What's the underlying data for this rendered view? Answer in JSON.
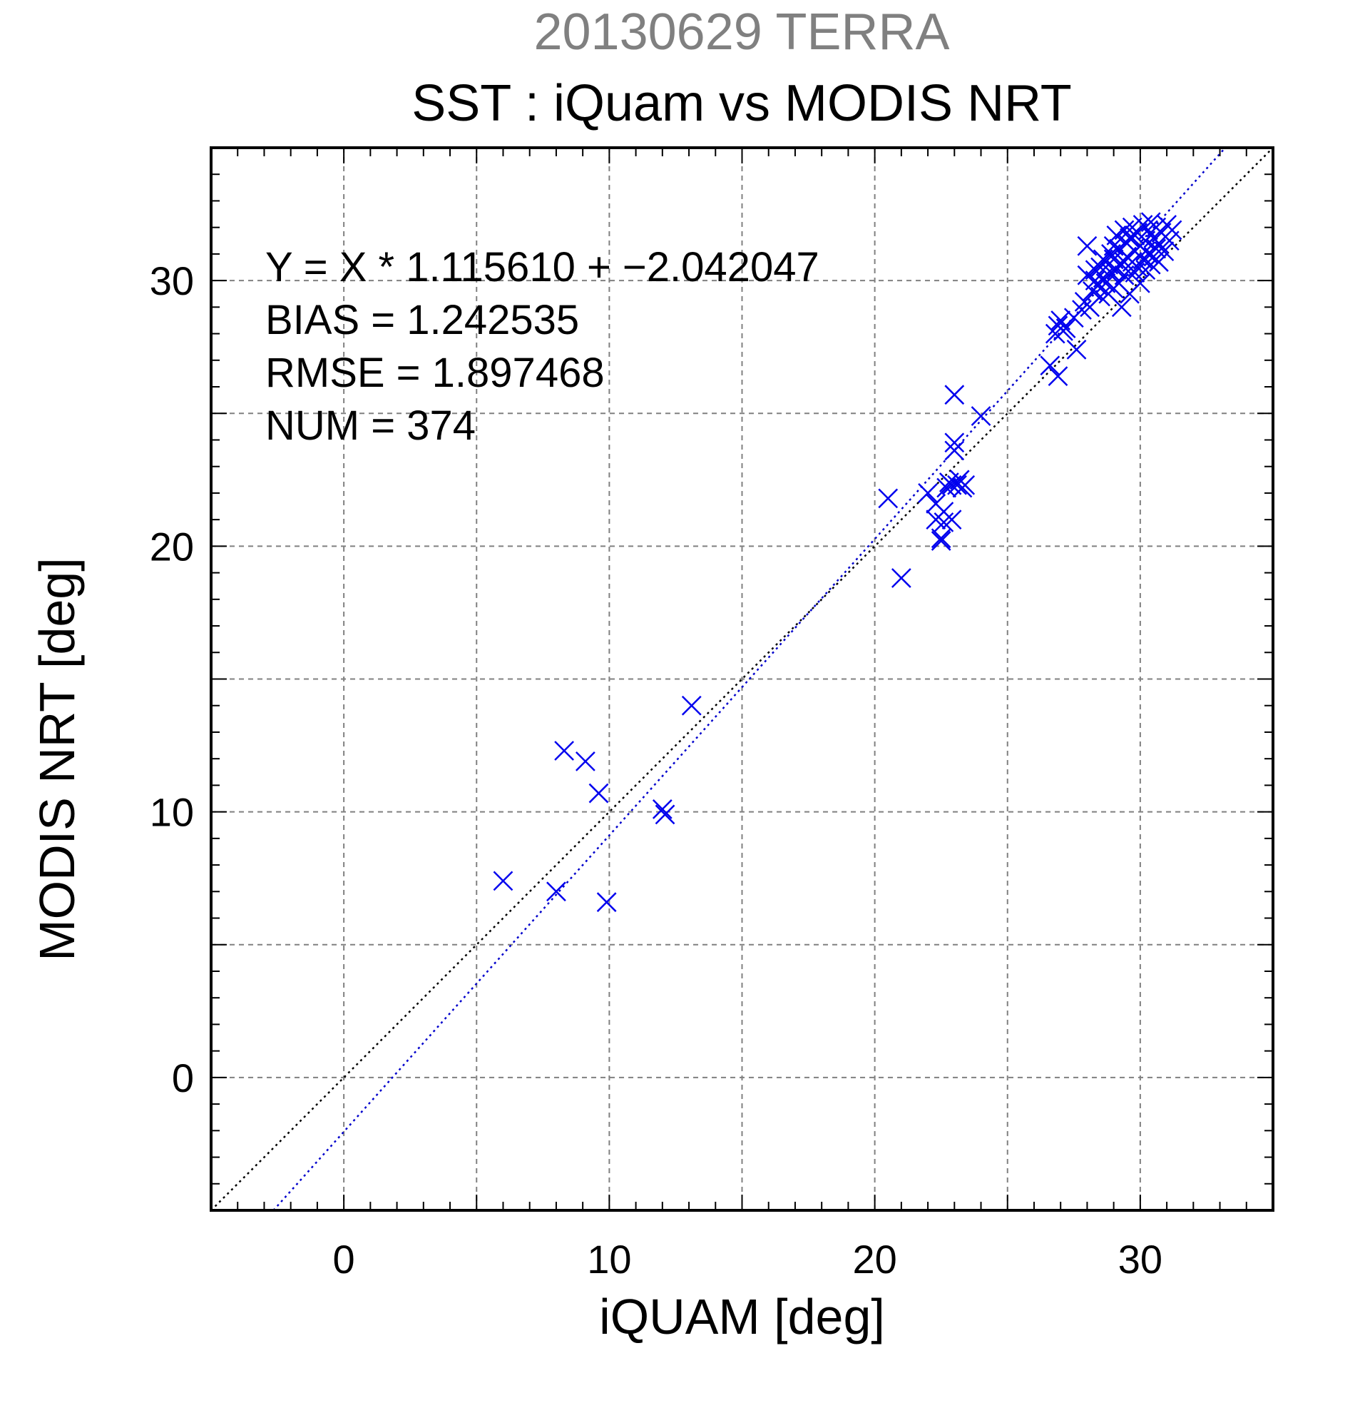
{
  "header": {
    "supertitle": "20130629 TERRA",
    "title": "SST : iQuam vs MODIS NRT"
  },
  "annotations": {
    "fit": "Y = X * 1.115610 + −2.042047",
    "bias": "BIAS = 1.242535",
    "rmse": "RMSE = 1.897468",
    "num": "NUM = 374"
  },
  "colors": {
    "points": "#0000ee",
    "fit_line": "#0000cc",
    "identity_line": "#000000",
    "grid": "#808080",
    "supertitle": "#808080"
  },
  "chart_data": {
    "type": "scatter",
    "title": "SST : iQuam vs MODIS NRT",
    "xlabel": "iQUAM [deg]",
    "ylabel": "MODIS NRT [deg]",
    "xlim": [
      -5,
      35
    ],
    "ylim": [
      -5,
      35
    ],
    "xticks": [
      0,
      10,
      20,
      30
    ],
    "yticks": [
      0,
      10,
      20,
      30
    ],
    "grid": true,
    "marker": "x",
    "series": [
      {
        "points": [
          [
            6.0,
            7.4
          ],
          [
            8.0,
            7.0
          ],
          [
            8.3,
            12.3
          ],
          [
            9.1,
            11.9
          ],
          [
            9.6,
            10.7
          ],
          [
            9.9,
            6.6
          ],
          [
            12.0,
            10.1
          ],
          [
            12.1,
            9.9
          ],
          [
            13.1,
            14.0
          ],
          [
            20.5,
            21.8
          ],
          [
            21.0,
            18.8
          ],
          [
            22.0,
            22.0
          ],
          [
            22.3,
            21.6
          ],
          [
            22.3,
            21.0
          ],
          [
            22.5,
            20.2
          ],
          [
            22.5,
            20.3
          ],
          [
            22.6,
            20.9
          ],
          [
            22.6,
            21.3
          ],
          [
            22.7,
            22.2
          ],
          [
            22.8,
            22.4
          ],
          [
            22.9,
            21.0
          ],
          [
            22.9,
            22.3
          ],
          [
            23.0,
            23.6
          ],
          [
            23.0,
            25.7
          ],
          [
            23.0,
            23.9
          ],
          [
            23.1,
            22.3
          ],
          [
            23.2,
            22.5
          ],
          [
            23.3,
            22.2
          ],
          [
            23.4,
            22.3
          ],
          [
            24.0,
            24.9
          ],
          [
            26.6,
            26.8
          ],
          [
            26.8,
            28.0
          ],
          [
            26.9,
            28.3
          ],
          [
            26.9,
            26.4
          ],
          [
            27.0,
            28.5
          ],
          [
            27.1,
            28.1
          ],
          [
            27.2,
            28.2
          ],
          [
            27.5,
            28.6
          ],
          [
            27.6,
            27.4
          ],
          [
            27.8,
            28.9
          ],
          [
            27.9,
            29.2
          ],
          [
            28.0,
            31.3
          ],
          [
            28.0,
            30.2
          ],
          [
            28.1,
            29.0
          ],
          [
            28.2,
            29.6
          ],
          [
            28.3,
            30.0
          ],
          [
            28.4,
            29.8
          ],
          [
            28.5,
            30.5
          ],
          [
            28.5,
            29.4
          ],
          [
            28.6,
            30.1
          ],
          [
            28.7,
            29.9
          ],
          [
            28.8,
            30.6
          ],
          [
            28.8,
            29.5
          ],
          [
            28.9,
            31.0
          ],
          [
            28.9,
            30.3
          ],
          [
            29.0,
            29.7
          ],
          [
            29.0,
            30.8
          ],
          [
            29.1,
            31.7
          ],
          [
            29.1,
            30.4
          ],
          [
            29.2,
            29.9
          ],
          [
            29.2,
            31.2
          ],
          [
            29.3,
            29.0
          ],
          [
            29.3,
            30.6
          ],
          [
            29.4,
            31.9
          ],
          [
            29.4,
            30.2
          ],
          [
            29.5,
            31.4
          ],
          [
            29.5,
            30.9
          ],
          [
            29.6,
            29.5
          ],
          [
            29.6,
            31.6
          ],
          [
            29.7,
            30.7
          ],
          [
            29.7,
            32.0
          ],
          [
            29.8,
            31.1
          ],
          [
            29.8,
            30.3
          ],
          [
            29.9,
            31.8
          ],
          [
            29.9,
            30.5
          ],
          [
            30.0,
            31.3
          ],
          [
            30.0,
            29.9
          ],
          [
            30.1,
            32.1
          ],
          [
            30.1,
            30.8
          ],
          [
            30.2,
            31.5
          ],
          [
            30.2,
            30.4
          ],
          [
            30.3,
            31.9
          ],
          [
            30.3,
            31.0
          ],
          [
            30.4,
            30.6
          ],
          [
            30.4,
            32.2
          ],
          [
            30.5,
            31.6
          ],
          [
            30.5,
            30.9
          ],
          [
            30.6,
            31.2
          ],
          [
            30.6,
            32.0
          ],
          [
            30.7,
            31.4
          ],
          [
            30.7,
            30.7
          ],
          [
            30.8,
            31.8
          ],
          [
            30.9,
            31.1
          ],
          [
            31.0,
            32.1
          ],
          [
            31.1,
            31.5
          ],
          [
            31.2,
            31.9
          ],
          [
            28.3,
            30.4
          ],
          [
            28.6,
            30.8
          ],
          [
            29.0,
            31.3
          ],
          [
            29.4,
            30.7
          ],
          [
            29.8,
            31.7
          ],
          [
            30.2,
            31.1
          ]
        ]
      }
    ],
    "lines": [
      {
        "kind": "fit",
        "slope": 1.11561,
        "intercept": -2.042047,
        "style": "dotted",
        "color": "#0000cc"
      },
      {
        "kind": "identity",
        "slope": 1,
        "intercept": 0,
        "style": "dotted",
        "color": "#000000"
      }
    ]
  }
}
